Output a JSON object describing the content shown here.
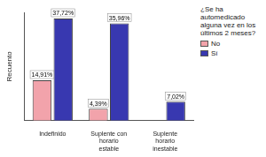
{
  "chart_data": {
    "type": "bar",
    "categories": [
      "Indefinido",
      "Suplente con horario estable",
      "Suplente horario inestable"
    ],
    "y_label": "Recuento",
    "legend_title": "¿Se ha automedicado alguna vez en los últimos 2 meses?",
    "series": [
      {
        "name": "No",
        "color": "#f2a3ab",
        "values": [
          14.91,
          4.39,
          null
        ],
        "value_labels": [
          "14,91%",
          "4,39%",
          null
        ]
      },
      {
        "name": "Sí",
        "color": "#3838b0",
        "values": [
          37.72,
          35.96,
          7.02
        ],
        "value_labels": [
          "37,72%",
          "35,96%",
          "7,02%"
        ]
      }
    ],
    "ylim": [
      0,
      40
    ],
    "grid": false,
    "legend": "right",
    "data_labels": true,
    "tick_labels": "x"
  }
}
